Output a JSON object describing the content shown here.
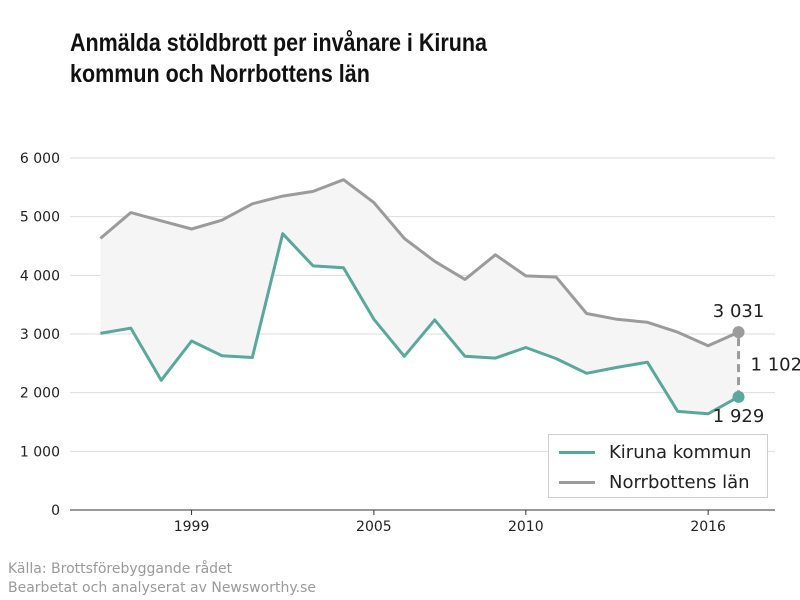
{
  "title_lines": [
    "Anmälda stöldbrott per invånare i Kiruna",
    "kommun och Norrbottens län"
  ],
  "source_lines": [
    "Källa: Brottsförebyggande rådet",
    "Bearbetat och analyserat av Newsworthy.se"
  ],
  "colors": {
    "kiruna": "#5aa89b",
    "norrbotten": "#9b9b9b",
    "fill": "#f5f5f5",
    "grid": "#dddddd",
    "axis": "#333333"
  },
  "chart_data": {
    "type": "line",
    "title": "Anmälda stöldbrott per invånare i Kiruna kommun och Norrbottens län",
    "x": [
      1996,
      1997,
      1998,
      1999,
      2000,
      2001,
      2002,
      2003,
      2004,
      2005,
      2006,
      2007,
      2008,
      2009,
      2010,
      2011,
      2012,
      2013,
      2014,
      2015,
      2016,
      2017
    ],
    "series": [
      {
        "name": "Kiruna kommun",
        "color": "#5aa89b",
        "values": [
          3010,
          3100,
          2210,
          2880,
          2630,
          2600,
          4710,
          4160,
          4130,
          3250,
          2620,
          3240,
          2620,
          2590,
          2770,
          2580,
          2330,
          2430,
          2520,
          1680,
          1640,
          1929
        ]
      },
      {
        "name": "Norrbottens län",
        "color": "#9b9b9b",
        "values": [
          4630,
          5070,
          4930,
          4790,
          4940,
          5220,
          5350,
          5430,
          5630,
          5240,
          4630,
          4240,
          3930,
          4350,
          3990,
          3970,
          3350,
          3250,
          3200,
          3030,
          2800,
          3031
        ]
      }
    ],
    "y_ticks": [
      "0",
      "1 000",
      "2 000",
      "3 000",
      "4 000",
      "5 000",
      "6 000"
    ],
    "y_tick_values": [
      0,
      1000,
      2000,
      3000,
      4000,
      5000,
      6000
    ],
    "x_ticks": [
      "1999",
      "2005",
      "2010",
      "2016"
    ],
    "x_tick_values": [
      1999,
      2005,
      2010,
      2016
    ],
    "ylim": [
      0,
      6000
    ],
    "xlim": [
      1995,
      2018.2
    ],
    "grid": true,
    "legend_position": "bottom-right",
    "annotations": {
      "end_norrbotten": "3 031",
      "end_kiruna": "1 929",
      "difference": "1 102"
    }
  },
  "legend": [
    {
      "label": "Kiruna kommun",
      "color": "#5aa89b"
    },
    {
      "label": "Norrbottens län",
      "color": "#9b9b9b"
    }
  ]
}
